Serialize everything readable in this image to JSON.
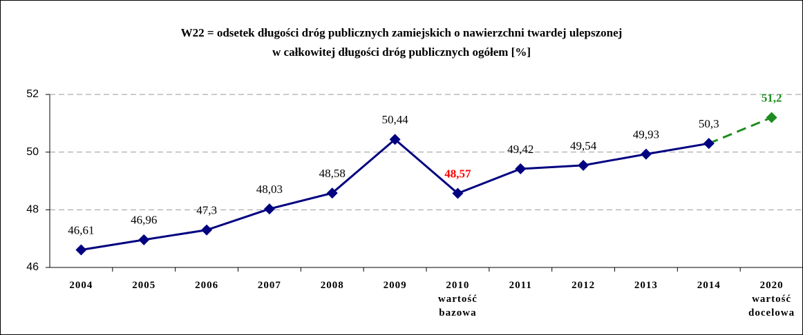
{
  "chart_data": {
    "type": "line",
    "title": "W22 = odsetek długości dróg publicznych zamiejskich o nawierzchni twardej ulepszonej\nw całkowitej długości dróg publicznych ogółem [%]",
    "categories": [
      "2004",
      "2005",
      "2006",
      "2007",
      "2008",
      "2009",
      "2010\nwartość\nbazowa",
      "2011",
      "2012",
      "2013",
      "2014",
      "2020\nwartość\ndocelowa"
    ],
    "series": [
      {
        "color": "#000080",
        "dash": false,
        "values": [
          46.61,
          46.96,
          47.3,
          48.03,
          48.58,
          50.44,
          48.57,
          49.42,
          49.54,
          49.93,
          50.3,
          null
        ],
        "value_labels": [
          "46,61",
          "46,96",
          "47,3",
          "48,03",
          "48,58",
          "50,44",
          "48,57",
          "49,42",
          "49,54",
          "49,93",
          "50,3",
          null
        ]
      },
      {
        "color": "#1e8c1e",
        "dash": true,
        "values": [
          null,
          null,
          null,
          null,
          null,
          null,
          null,
          null,
          null,
          null,
          50.3,
          51.2
        ],
        "value_labels": [
          null,
          null,
          null,
          null,
          null,
          null,
          null,
          null,
          null,
          null,
          null,
          "51,2"
        ]
      }
    ],
    "highlight": {
      "series": 0,
      "index": 6,
      "color": "#ff0000"
    },
    "ylim": [
      46,
      52
    ],
    "yticks": [
      46,
      48,
      50,
      52
    ],
    "grid": true
  }
}
